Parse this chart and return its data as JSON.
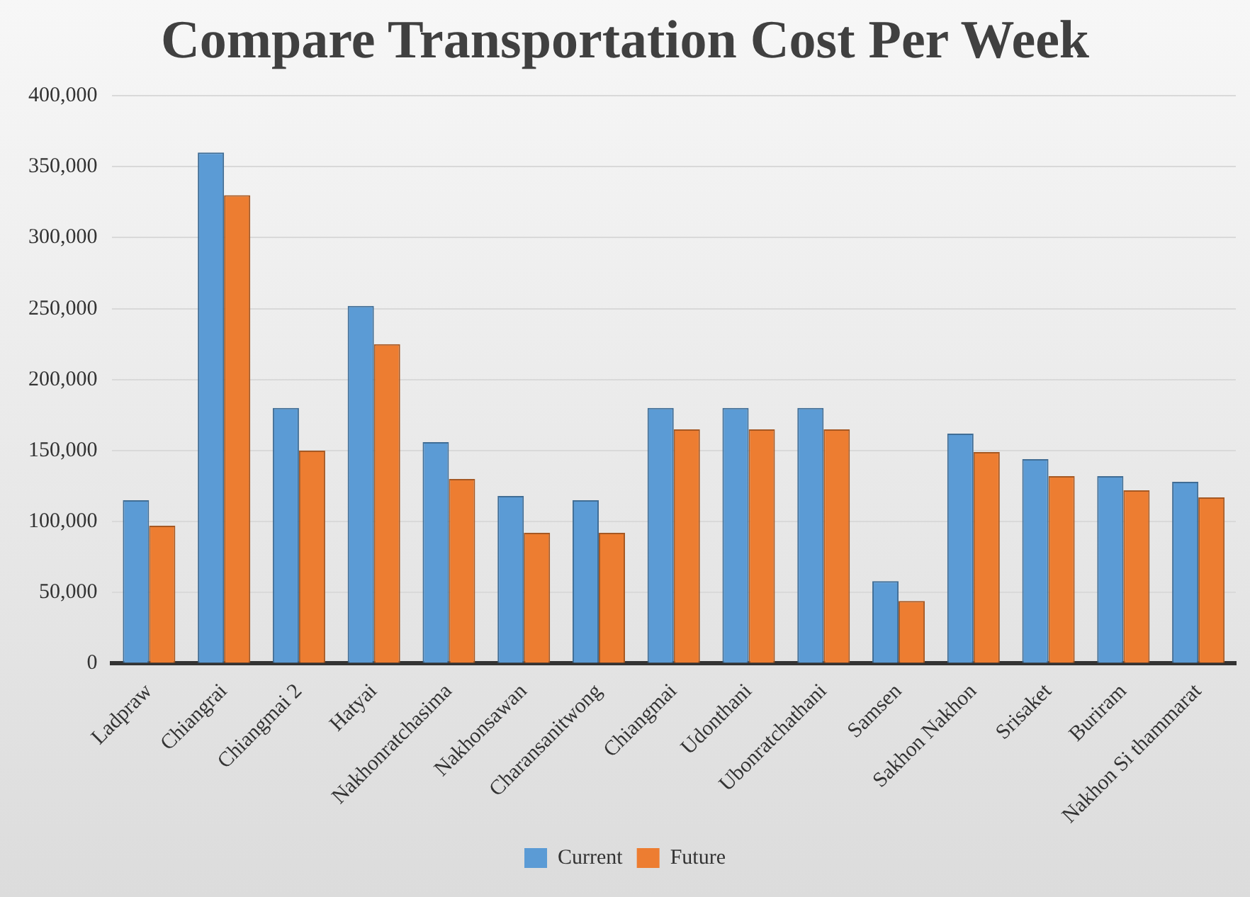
{
  "chart_data": {
    "type": "bar",
    "title": "Compare Transportation Cost Per Week",
    "categories": [
      "Ladpraw",
      "Chiangrai",
      "Chiangmai 2",
      "Hatyai",
      "Nakhonratchasima",
      "Nakhonsawan",
      "Charansanitwong",
      "Chiangmai",
      "Udonthani",
      "Ubonratchathani",
      "Samsen",
      "Sakhon Nakhon",
      "Srisaket",
      "Buriram",
      "Nakhon Si thammarat"
    ],
    "series": [
      {
        "name": "Current",
        "color": "#5b9bd5",
        "values": [
          115000,
          360000,
          180000,
          252000,
          156000,
          118000,
          115000,
          180000,
          180000,
          180000,
          58000,
          162000,
          144000,
          132000,
          128000
        ]
      },
      {
        "name": "Future",
        "color": "#ed7d31",
        "values": [
          97000,
          330000,
          150000,
          225000,
          130000,
          92000,
          92000,
          165000,
          165000,
          165000,
          44000,
          149000,
          132000,
          122000,
          117000
        ]
      }
    ],
    "ylim": [
      0,
      400000
    ],
    "yticks": [
      {
        "value": 0,
        "label": "0"
      },
      {
        "value": 50000,
        "label": "50,000"
      },
      {
        "value": 100000,
        "label": "100,000"
      },
      {
        "value": 150000,
        "label": "150,000"
      },
      {
        "value": 200000,
        "label": "200,000"
      },
      {
        "value": 250000,
        "label": "250,000"
      },
      {
        "value": 300000,
        "label": "300,000"
      },
      {
        "value": 350000,
        "label": "350,000"
      },
      {
        "value": 400000,
        "label": "400,000"
      }
    ],
    "grid": "y",
    "legend": "bottom"
  }
}
